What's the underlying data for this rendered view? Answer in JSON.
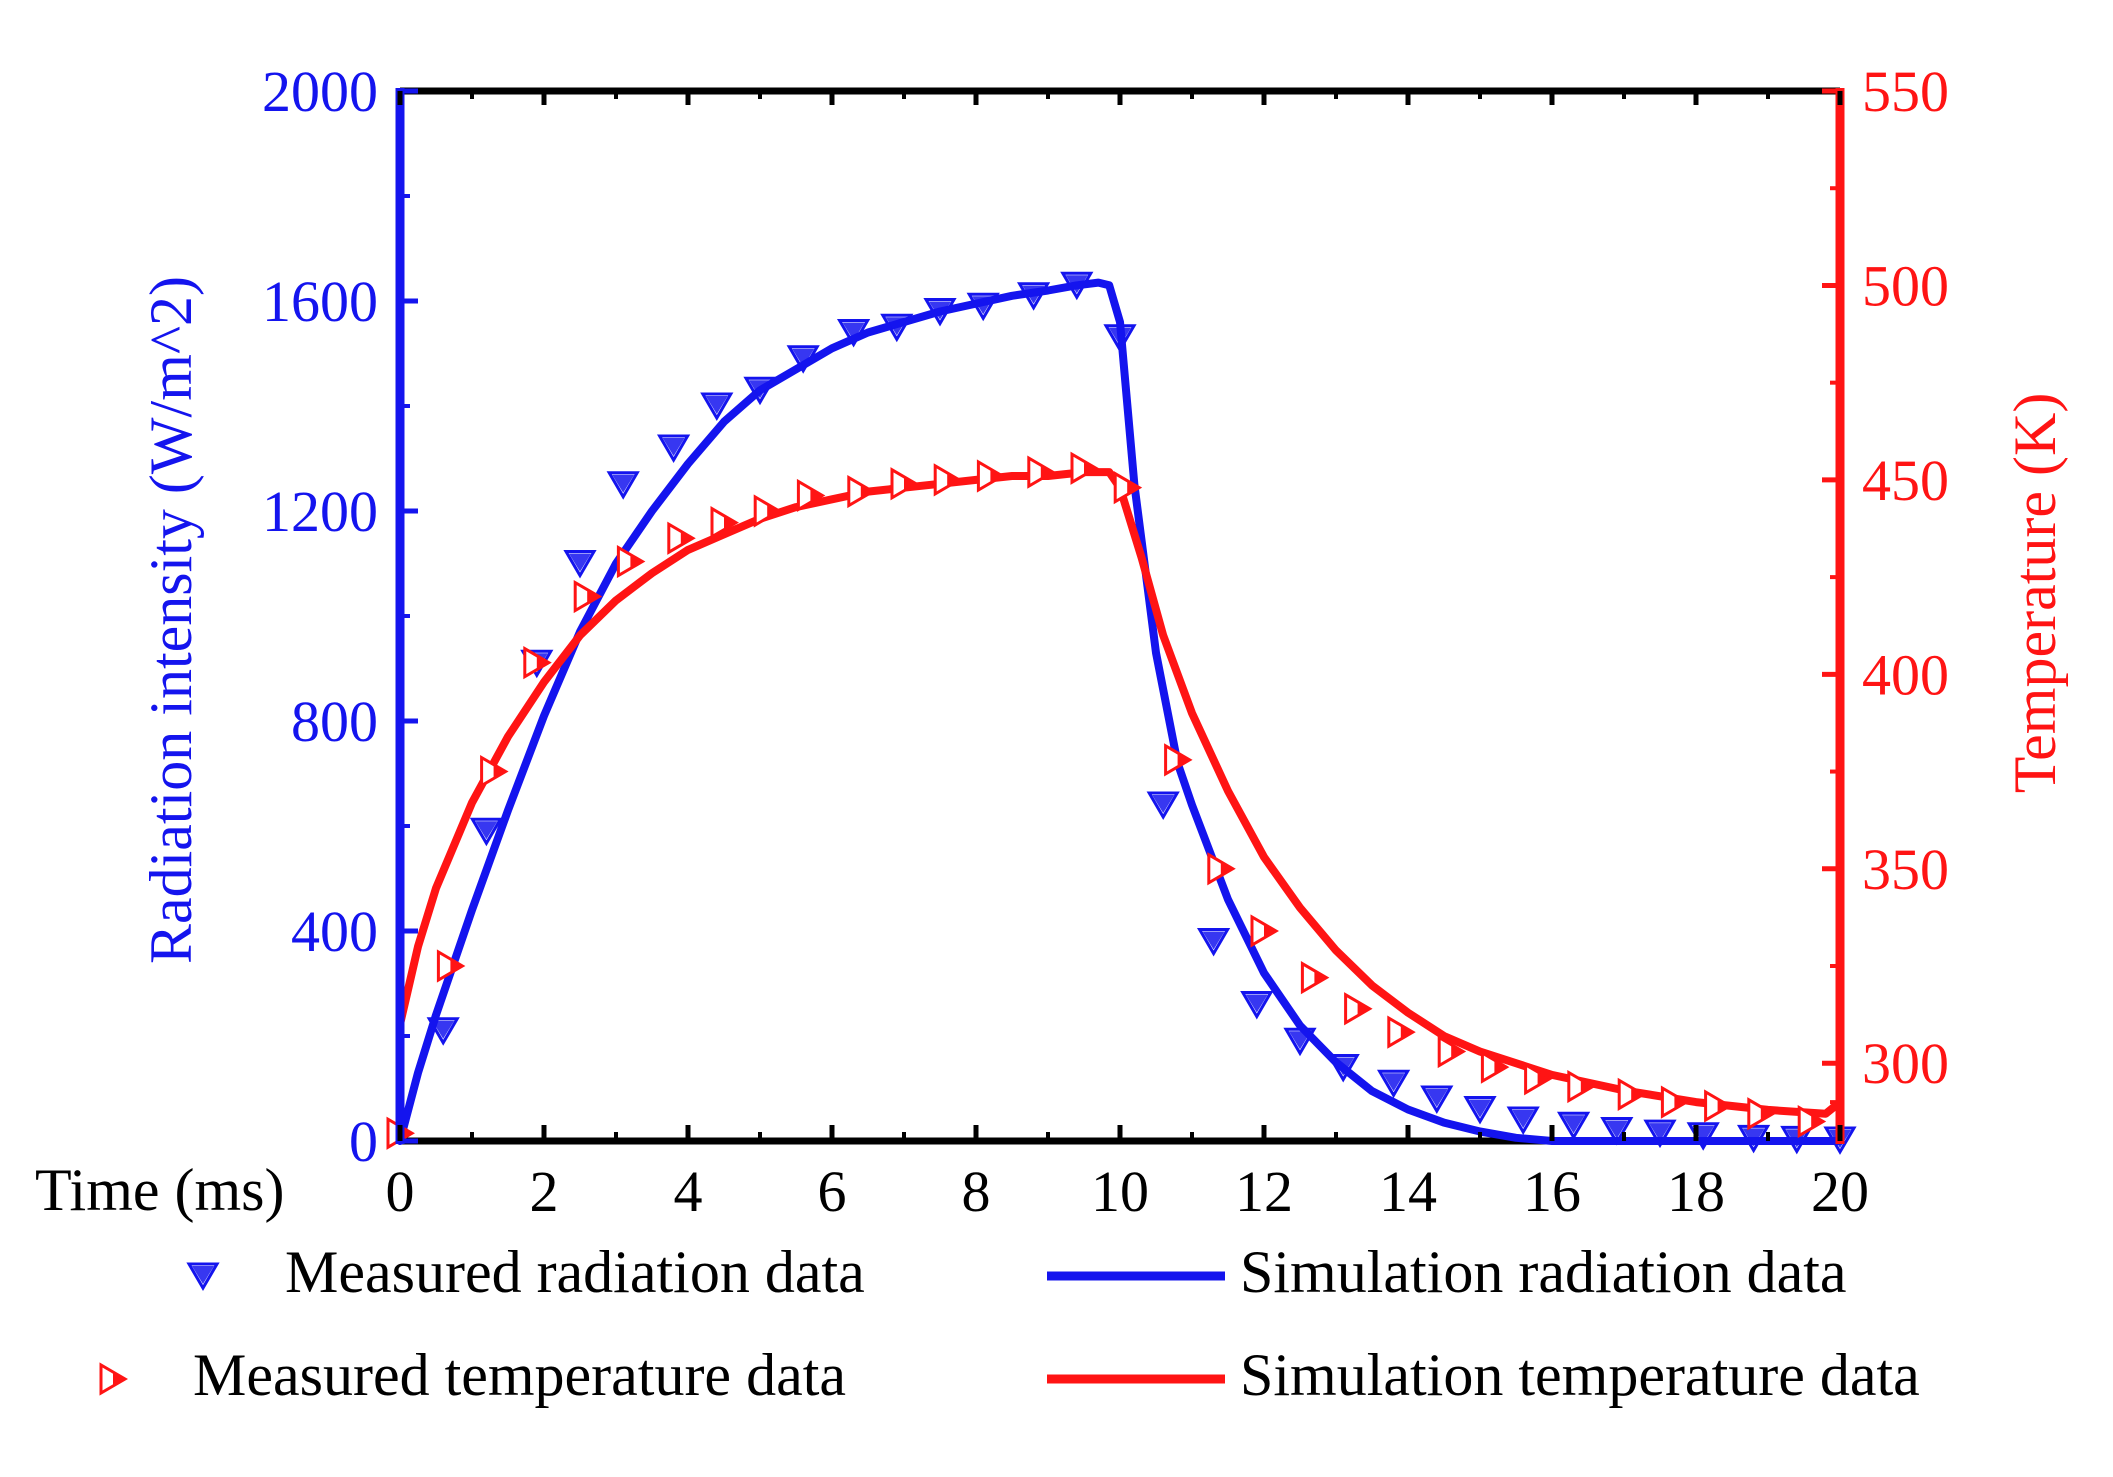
{
  "colors": {
    "radiation": "#1414ee",
    "temperature": "#ff1414",
    "axis_frame": "#000000",
    "x_text": "#000000"
  },
  "chart_data": {
    "type": "line",
    "x_label": "Time (ms)",
    "xlim": [
      0,
      20
    ],
    "x_ticks": [
      0,
      2,
      4,
      6,
      8,
      10,
      12,
      14,
      16,
      18,
      20
    ],
    "y_left": {
      "label": "Radiation intensity (W/m^2)",
      "lim": [
        0,
        2000
      ],
      "ticks": [
        0,
        400,
        800,
        1200,
        1600,
        2000
      ]
    },
    "y_right": {
      "label": "Temperature (K)",
      "lim": [
        280,
        550
      ],
      "ticks": [
        300,
        350,
        400,
        450,
        500,
        550
      ]
    },
    "legend": {
      "position": "bottom",
      "entries": [
        {
          "label": "Measured radiation data",
          "series": "measured_radiation",
          "symbol": "down-triangle"
        },
        {
          "label": "Simulation radiation data",
          "series": "simulation_radiation",
          "symbol": "line"
        },
        {
          "label": "Measured temperature data",
          "series": "measured_temperature",
          "symbol": "right-triangle"
        },
        {
          "label": "Simulation temperature data",
          "series": "simulation_temperature",
          "symbol": "line"
        }
      ]
    },
    "series": {
      "measured_radiation": {
        "name": "Measured radiation data",
        "axis": "left",
        "x": [
          0.6,
          1.2,
          1.9,
          2.5,
          3.1,
          3.8,
          4.4,
          5.0,
          5.6,
          6.3,
          6.9,
          7.5,
          8.1,
          8.8,
          9.4,
          10.0,
          10.6,
          11.3,
          11.9,
          12.5,
          13.1,
          13.8,
          14.4,
          15.0,
          15.6,
          16.3,
          16.9,
          17.5,
          18.1,
          18.8,
          19.4,
          20.0
        ],
        "y": [
          210,
          590,
          910,
          1100,
          1250,
          1320,
          1400,
          1430,
          1490,
          1540,
          1550,
          1580,
          1590,
          1610,
          1630,
          1530,
          640,
          380,
          260,
          190,
          140,
          110,
          80,
          60,
          40,
          30,
          20,
          15,
          10,
          5,
          3,
          2
        ]
      },
      "simulation_radiation": {
        "name": "Simulation radiation data",
        "axis": "left",
        "x": [
          0,
          0.25,
          0.5,
          1.0,
          1.5,
          2.0,
          2.5,
          3.0,
          3.5,
          4.0,
          4.5,
          5.0,
          5.5,
          6.0,
          6.5,
          7.0,
          7.5,
          8.0,
          8.5,
          9.0,
          9.4,
          9.7,
          9.85,
          10.0,
          10.2,
          10.5,
          10.8,
          11.0,
          11.5,
          12.0,
          12.5,
          13.0,
          13.5,
          14.0,
          14.5,
          15.0,
          15.5,
          16.0,
          17.0,
          18.0,
          19.0,
          20.0
        ],
        "y": [
          0,
          130,
          240,
          440,
          630,
          810,
          970,
          1100,
          1200,
          1290,
          1370,
          1430,
          1470,
          1510,
          1540,
          1560,
          1580,
          1595,
          1610,
          1620,
          1630,
          1635,
          1630,
          1560,
          1250,
          930,
          720,
          640,
          460,
          320,
          220,
          150,
          95,
          60,
          35,
          18,
          6,
          0,
          0,
          0,
          0,
          0
        ]
      },
      "measured_temperature": {
        "name": "Measured temperature data",
        "axis": "right",
        "x": [
          0.0,
          0.7,
          1.3,
          1.9,
          2.6,
          3.2,
          3.9,
          4.5,
          5.1,
          5.7,
          6.4,
          7.0,
          7.6,
          8.2,
          8.9,
          9.5,
          10.1,
          10.8,
          11.4,
          12.0,
          12.7,
          13.3,
          13.9,
          14.6,
          15.2,
          15.8,
          16.4,
          17.1,
          17.7,
          18.3,
          18.9,
          19.6
        ],
        "y": [
          282,
          325,
          375,
          403,
          420,
          429,
          435,
          439,
          442,
          446,
          447,
          449,
          450,
          451,
          452,
          453,
          448,
          378,
          350,
          334,
          322,
          314,
          308,
          303,
          299,
          296,
          294,
          292,
          290,
          289,
          287,
          285
        ]
      },
      "simulation_temperature": {
        "name": "Simulation temperature data",
        "axis": "right",
        "x": [
          0,
          0.25,
          0.5,
          1.0,
          1.5,
          2.0,
          2.5,
          3.0,
          3.5,
          4.0,
          4.5,
          5.0,
          5.5,
          6.0,
          6.5,
          7.0,
          7.5,
          8.0,
          8.5,
          9.0,
          9.5,
          9.85,
          10.0,
          10.3,
          10.6,
          11.0,
          11.5,
          12.0,
          12.5,
          13.0,
          13.5,
          14.0,
          14.5,
          15.0,
          15.5,
          16.0,
          17.0,
          18.0,
          19.0,
          19.8,
          20.0
        ],
        "y": [
          310,
          330,
          345,
          367,
          384,
          398,
          410,
          419,
          426,
          432,
          436,
          440,
          443,
          445,
          447,
          448,
          449,
          450,
          451,
          451,
          452,
          452,
          448,
          430,
          410,
          390,
          370,
          353,
          340,
          329,
          320,
          313,
          307,
          303,
          300,
          297,
          293,
          290,
          288,
          287,
          290
        ]
      }
    }
  }
}
